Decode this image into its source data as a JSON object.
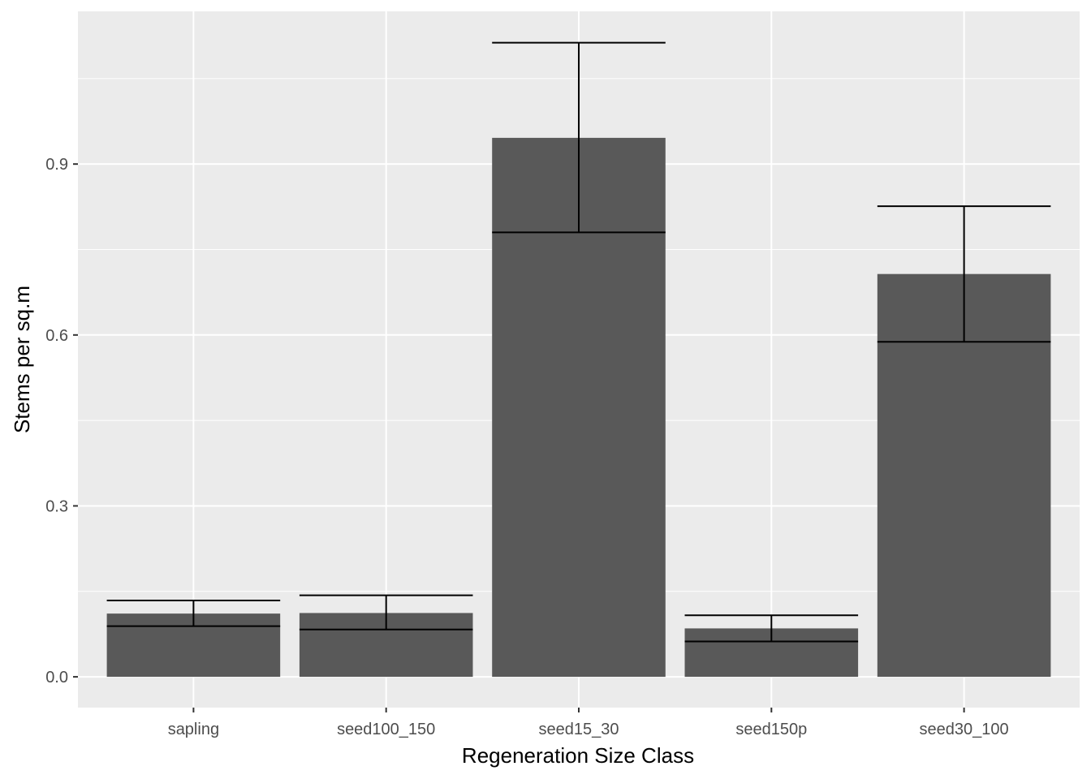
{
  "chart_data": {
    "type": "bar",
    "title": "",
    "xlabel": "Regeneration Size Class",
    "ylabel": "Stems per sq.m",
    "categories": [
      "sapling",
      "seed100_150",
      "seed15_30",
      "seed150p",
      "seed30_100"
    ],
    "values": [
      0.111,
      0.112,
      0.946,
      0.085,
      0.707
    ],
    "error_lower": [
      0.089,
      0.083,
      0.78,
      0.062,
      0.588
    ],
    "error_upper": [
      0.134,
      0.143,
      1.113,
      0.108,
      0.826
    ],
    "ylim": [
      -0.054,
      1.168
    ],
    "yticks": [
      0.0,
      0.3,
      0.6,
      0.9
    ],
    "ytick_labels": [
      "0.0",
      "0.3",
      "0.6",
      "0.9"
    ],
    "grid": true,
    "colors": {
      "panel_background": "#EBEBEB",
      "grid_major": "#FFFFFF",
      "bar_fill": "#595959",
      "error_bar": "#000000",
      "tick_label": "#4D4D4D"
    }
  }
}
